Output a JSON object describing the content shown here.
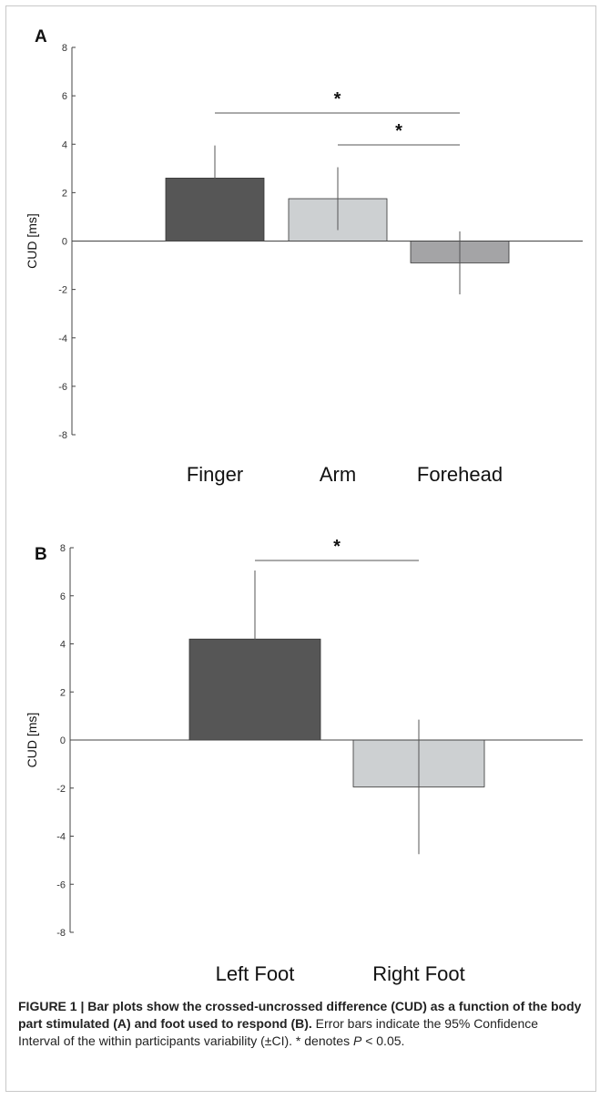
{
  "chart_data": [
    {
      "panel": "A",
      "type": "bar",
      "ylabel": "CUD [ms]",
      "ylim": [
        -8,
        8
      ],
      "yticks": [
        8,
        6,
        4,
        2,
        0,
        -2,
        -4,
        -6,
        -8
      ],
      "categories": [
        "Finger",
        "Arm",
        "Forehead"
      ],
      "values": [
        2.6,
        1.75,
        -0.9
      ],
      "ci_low": [
        1.25,
        0.45,
        -2.2
      ],
      "ci_high": [
        3.95,
        3.05,
        0.4
      ],
      "colors": [
        "#565656",
        "#cdd0d2",
        "#a4a4a6"
      ],
      "significance": [
        {
          "from": "Finger",
          "to": "Forehead",
          "label": "*"
        },
        {
          "from": "Arm",
          "to": "Forehead",
          "label": "*"
        }
      ]
    },
    {
      "panel": "B",
      "type": "bar",
      "ylabel": "CUD [ms]",
      "ylim": [
        -8,
        8
      ],
      "yticks": [
        8,
        6,
        4,
        2,
        0,
        -2,
        -4,
        -6,
        -8
      ],
      "categories": [
        "Left Foot",
        "Right Foot"
      ],
      "values": [
        4.2,
        -1.95
      ],
      "ci_low": [
        1.4,
        -4.75
      ],
      "ci_high": [
        7.05,
        0.85
      ],
      "colors": [
        "#565656",
        "#cdd0d2"
      ],
      "significance": [
        {
          "from": "Left Foot",
          "to": "Right Foot",
          "label": "*"
        }
      ]
    }
  ],
  "caption": {
    "title": "FIGURE 1 | Bar plots show the crossed-uncrossed difference (CUD) as a function of the body part stimulated (A) and foot used to respond (B).",
    "body_prefix": " Error bars indicate the 95% Confidence Interval of the within participants variability (±CI). * denotes ",
    "p_symbol": "P",
    "body_suffix": " < 0.05."
  }
}
